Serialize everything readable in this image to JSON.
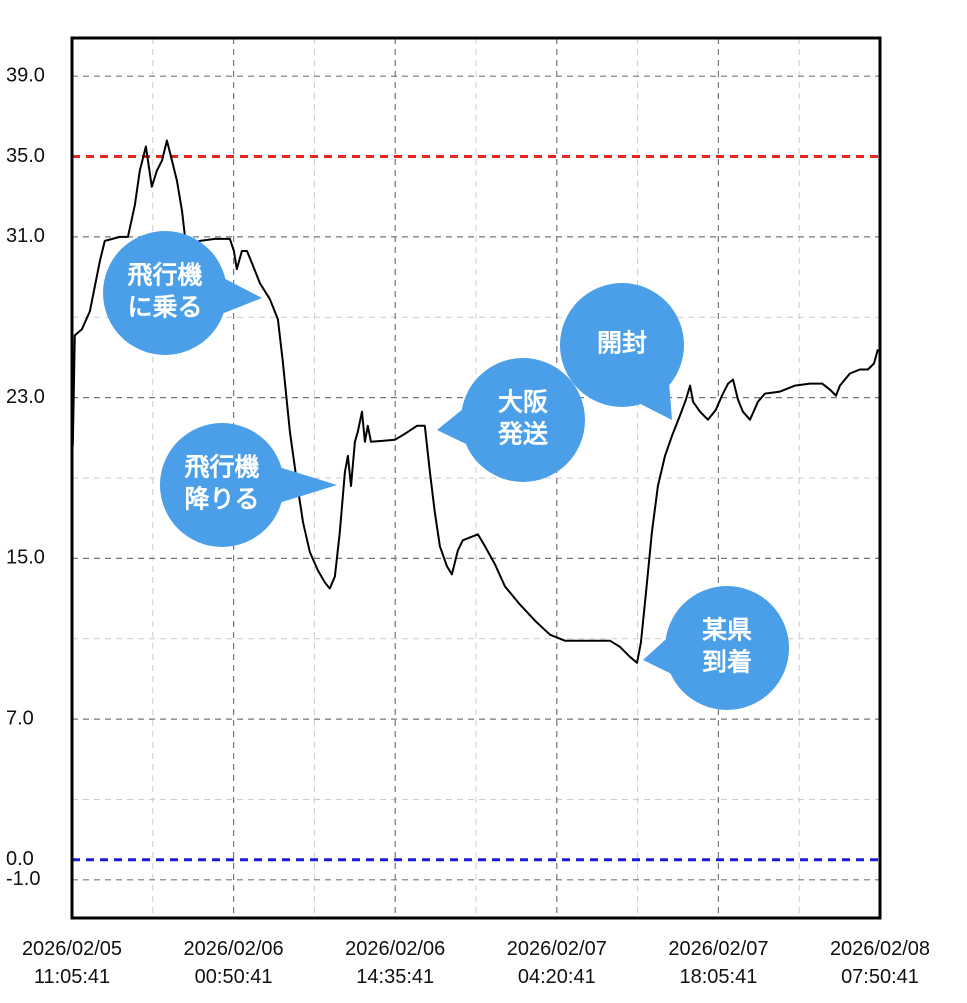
{
  "chart_data": {
    "type": "line",
    "x": [
      "2026-02-05T11:10",
      "2026-02-05T11:20",
      "2026-02-05T11:56",
      "2026-02-05T12:37",
      "2026-02-05T13:28",
      "2026-02-05T13:53",
      "2026-02-05T15:10",
      "2026-02-05T15:51",
      "2026-02-05T16:27",
      "2026-02-05T16:52",
      "2026-02-05T17:23",
      "2026-02-05T17:53",
      "2026-02-05T18:19",
      "2026-02-05T18:45",
      "2026-02-05T19:10",
      "2026-02-05T19:36",
      "2026-02-05T20:01",
      "2026-02-05T20:27",
      "2026-02-05T20:47",
      "2026-02-05T21:59",
      "2026-02-05T23:15",
      "2026-02-06T00:32",
      "2026-02-06T00:52",
      "2026-02-06T01:07",
      "2026-02-06T01:33",
      "2026-02-06T01:59",
      "2026-02-06T02:24",
      "2026-02-06T03:05",
      "2026-02-06T03:56",
      "2026-02-06T04:37",
      "2026-02-06T05:02",
      "2026-02-06T05:38",
      "2026-02-06T06:14",
      "2026-02-06T06:45",
      "2026-02-06T07:20",
      "2026-02-06T08:01",
      "2026-02-06T08:37",
      "2026-02-06T09:02",
      "2026-02-06T09:28",
      "2026-02-06T09:53",
      "2026-02-06T10:19",
      "2026-02-06T10:34",
      "2026-02-06T10:50",
      "2026-02-06T11:10",
      "2026-02-06T11:25",
      "2026-02-06T11:46",
      "2026-02-06T12:01",
      "2026-02-06T12:16",
      "2026-02-06T12:32",
      "2026-02-06T14:34",
      "2026-02-06T15:25",
      "2026-02-06T16:27",
      "2026-02-06T17:07",
      "2026-02-06T17:33",
      "2026-02-06T17:58",
      "2026-02-06T18:24",
      "2026-02-06T19:00",
      "2026-02-06T19:25",
      "2026-02-06T19:56",
      "2026-02-06T20:21",
      "2026-02-06T21:38",
      "2026-02-06T22:14",
      "2026-02-06T23:05",
      "2026-02-06T23:56",
      "2026-02-07T01:13",
      "2026-02-07T02:29",
      "2026-02-07T03:46",
      "2026-02-07T05:02",
      "2026-02-07T08:52",
      "2026-02-07T09:43",
      "2026-02-07T10:34",
      "2026-02-07T11:10",
      "2026-02-07T11:30",
      "2026-02-07T11:56",
      "2026-02-07T12:26",
      "2026-02-07T12:57",
      "2026-02-07T13:33",
      "2026-02-07T14:09",
      "2026-02-07T14:49",
      "2026-02-07T15:20",
      "2026-02-07T15:41",
      "2026-02-07T15:56",
      "2026-02-07T16:32",
      "2026-02-07T17:12",
      "2026-02-07T17:53",
      "2026-02-07T18:24",
      "2026-02-07T18:55",
      "2026-02-07T19:20",
      "2026-02-07T19:46",
      "2026-02-07T20:11",
      "2026-02-07T20:47",
      "2026-02-07T21:28",
      "2026-02-07T22:03",
      "2026-02-07T23:20",
      "2026-02-08T00:37",
      "2026-02-08T01:53",
      "2026-02-08T02:55",
      "2026-02-08T03:35",
      "2026-02-08T04:06",
      "2026-02-08T04:26",
      "2026-02-08T05:17",
      "2026-02-08T06:08",
      "2026-02-08T06:49",
      "2026-02-08T07:20",
      "2026-02-08T07:40"
    ],
    "series": [
      {
        "color": "#000000",
        "values": [
          20.6,
          26.1,
          26.4,
          27.3,
          29.8,
          30.8,
          31.0,
          31.0,
          32.6,
          34.3,
          35.5,
          33.5,
          34.3,
          34.8,
          35.8,
          34.8,
          33.8,
          32.3,
          30.6,
          30.8,
          30.9,
          30.9,
          30.3,
          29.4,
          30.3,
          30.3,
          29.7,
          28.7,
          27.9,
          26.9,
          24.8,
          21.3,
          18.8,
          16.8,
          15.3,
          14.4,
          13.8,
          13.5,
          14.1,
          16.3,
          19.3,
          20.1,
          18.6,
          20.8,
          21.3,
          22.3,
          20.8,
          21.6,
          20.8,
          20.9,
          21.2,
          21.6,
          21.6,
          19.3,
          17.3,
          15.6,
          14.6,
          14.2,
          15.4,
          15.9,
          16.2,
          15.6,
          14.7,
          13.6,
          12.7,
          11.9,
          11.2,
          10.9,
          10.9,
          10.6,
          10.1,
          9.8,
          10.8,
          13.3,
          16.3,
          18.6,
          20.1,
          21.1,
          22.1,
          22.9,
          23.6,
          22.8,
          22.3,
          21.9,
          22.4,
          23.1,
          23.7,
          23.9,
          22.9,
          22.3,
          21.9,
          22.8,
          23.2,
          23.3,
          23.6,
          23.7,
          23.7,
          23.4,
          23.1,
          23.6,
          24.2,
          24.4,
          24.4,
          24.7,
          25.4
        ]
      }
    ],
    "xlim": [
      "2026-02-05T11:05:41",
      "2026-02-08T07:50:41"
    ],
    "xticks": [
      {
        "value": "2026-02-05T11:05:41",
        "label": "2026/02/05 11:05:41"
      },
      {
        "value": "2026-02-06T00:50:41",
        "label": "2026/02/06 00:50:41"
      },
      {
        "value": "2026-02-06T14:35:41",
        "label": "2026/02/06 14:35:41"
      },
      {
        "value": "2026-02-07T04:20:41",
        "label": "2026/02/07 04:20:41"
      },
      {
        "value": "2026-02-07T18:05:41",
        "label": "2026/02/07 18:05:41"
      },
      {
        "value": "2026-02-08T07:50:41",
        "label": "2026/02/08 07:50:41"
      }
    ],
    "ylim": [
      -2.9,
      40.9
    ],
    "yticks": [
      {
        "value": 39,
        "label": "39.0"
      },
      {
        "value": 35,
        "label": "35.0"
      },
      {
        "value": 31,
        "label": "31.0"
      },
      {
        "value": 23,
        "label": "23.0"
      },
      {
        "value": 15,
        "label": "15.0"
      },
      {
        "value": 7,
        "label": "7.0"
      },
      {
        "value": 0,
        "label": "0.0"
      },
      {
        "value": -1,
        "label": "-1.0"
      }
    ],
    "minor_yticks": [
      27,
      19,
      11,
      3
    ],
    "reference_lines": [
      {
        "value": 35,
        "color": "#e5261e"
      },
      {
        "value": 0,
        "color": "#1b1bdc"
      }
    ],
    "grid": true,
    "annotations": [
      {
        "lines": [
          "飛行機",
          "に乗る"
        ],
        "color": "#4a9fe8"
      },
      {
        "lines": [
          "飛行機",
          "降りる"
        ],
        "color": "#4a9fe8"
      },
      {
        "lines": [
          "大阪",
          "発送"
        ],
        "color": "#4a9fe8"
      },
      {
        "lines": [
          "開封"
        ],
        "color": "#4a9fe8"
      },
      {
        "lines": [
          "某県",
          "到着"
        ],
        "color": "#4a9fe8"
      }
    ]
  }
}
